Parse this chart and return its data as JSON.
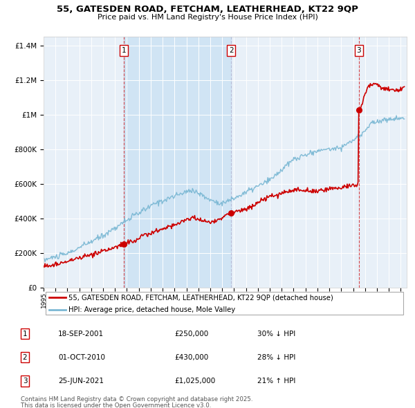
{
  "title": "55, GATESDEN ROAD, FETCHAM, LEATHERHEAD, KT22 9QP",
  "subtitle": "Price paid vs. HM Land Registry's House Price Index (HPI)",
  "legend_line1": "55, GATESDEN ROAD, FETCHAM, LEATHERHEAD, KT22 9QP (detached house)",
  "legend_line2": "HPI: Average price, detached house, Mole Valley",
  "sales": [
    {
      "num": 1,
      "date_label": "18-SEP-2001",
      "date_x": 2001.72,
      "price": 250000,
      "price_str": "£250,000",
      "pct": "30%",
      "dir": "↓"
    },
    {
      "num": 2,
      "date_label": "01-OCT-2010",
      "date_x": 2010.75,
      "price": 430000,
      "price_str": "£430,000",
      "pct": "28%",
      "dir": "↓"
    },
    {
      "num": 3,
      "date_label": "25-JUN-2021",
      "date_x": 2021.48,
      "price": 1025000,
      "price_str": "£1,025,000",
      "pct": "21%",
      "dir": "↑"
    }
  ],
  "footnote_line1": "Contains HM Land Registry data © Crown copyright and database right 2025.",
  "footnote_line2": "This data is licensed under the Open Government Licence v3.0.",
  "red_color": "#cc0000",
  "blue_color": "#7bb8d4",
  "plot_bg_color": "#e8f0f8",
  "shade_color": "#d0e4f4",
  "ylim": [
    0,
    1450000
  ],
  "xlim_start": 1995,
  "xlim_end": 2025.5,
  "yticks": [
    0,
    200000,
    400000,
    600000,
    800000,
    1000000,
    1200000,
    1400000
  ]
}
